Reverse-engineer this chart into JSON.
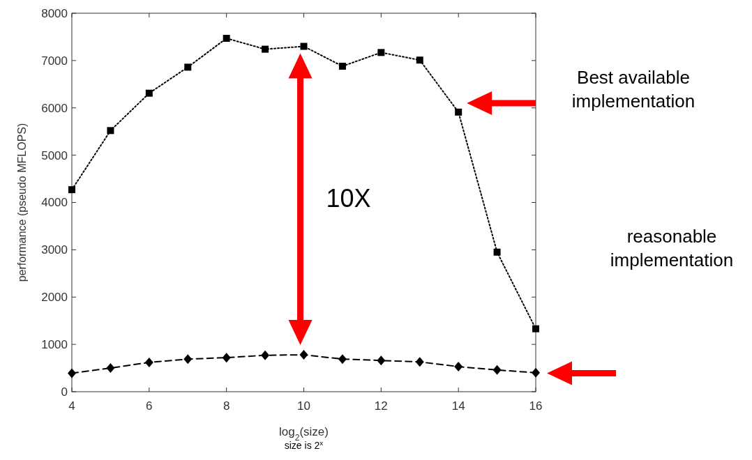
{
  "chart_data": {
    "type": "line",
    "xlabel": "log$_{2}$(size)",
    "ylabel": "performance (pseudo MFLOPS)",
    "x": [
      4,
      5,
      6,
      7,
      8,
      9,
      10,
      11,
      12,
      13,
      14,
      15,
      16
    ],
    "series": [
      {
        "color": "#000000",
        "marker": "square",
        "line_style": "dotted",
        "values": [
          4270,
          5520,
          6310,
          6860,
          7470,
          7240,
          7300,
          6880,
          7170,
          7010,
          5910,
          2950,
          1330
        ]
      },
      {
        "color": "#000000",
        "marker": "diamond",
        "line_style": "dashed",
        "values": [
          390,
          500,
          620,
          690,
          720,
          770,
          780,
          690,
          660,
          630,
          530,
          460,
          400
        ]
      }
    ],
    "xlim": [
      4,
      16
    ],
    "xticks": [
      4,
      6,
      8,
      10,
      12,
      14,
      16
    ],
    "ylim": [
      0,
      8000
    ],
    "yticks": [
      0,
      1000,
      2000,
      3000,
      4000,
      5000,
      6000,
      7000,
      8000
    ],
    "annotations": [
      "10X",
      "Best available implementation",
      "reasonable implementation",
      "size is 2$^{x}$"
    ]
  }
}
